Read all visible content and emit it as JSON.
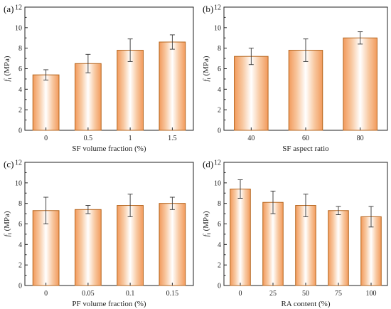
{
  "figure": {
    "panels": [
      "a",
      "b",
      "c",
      "d"
    ]
  },
  "style": {
    "bar_edge": "#b5651d",
    "bar_center": "#ffffff",
    "bar_side": "#f4a46a",
    "error_bar": "#333333",
    "axis": "#222222"
  },
  "chart_data": [
    {
      "panel": "(a)",
      "type": "bar",
      "categories": [
        "0",
        "0.5",
        "1",
        "1.5"
      ],
      "values": [
        5.4,
        6.5,
        7.8,
        8.6
      ],
      "errors": [
        0.5,
        0.9,
        1.1,
        0.7
      ],
      "xlabel": "SF volume fraction (%)",
      "ylabel": "f_t (MPa)",
      "ylim": [
        0,
        12
      ],
      "yticks": [
        "0",
        "2",
        "4",
        "6",
        "8",
        "10",
        "12"
      ],
      "grid": false
    },
    {
      "panel": "(b)",
      "type": "bar",
      "categories": [
        "40",
        "60",
        "80"
      ],
      "values": [
        7.2,
        7.8,
        9.0
      ],
      "errors": [
        0.8,
        1.1,
        0.6
      ],
      "xlabel": "SF aspect ratio",
      "ylabel": "f_t (MPa)",
      "ylim": [
        0,
        12
      ],
      "yticks": [
        "0",
        "2",
        "4",
        "6",
        "8",
        "10",
        "12"
      ],
      "grid": false
    },
    {
      "panel": "(c)",
      "type": "bar",
      "categories": [
        "0",
        "0.05",
        "0.1",
        "0.15"
      ],
      "values": [
        7.3,
        7.4,
        7.8,
        8.0
      ],
      "errors": [
        1.3,
        0.4,
        1.1,
        0.6
      ],
      "xlabel": "PF volume fraction (%)",
      "ylabel": "f_t (MPa)",
      "ylim": [
        0,
        12
      ],
      "yticks": [
        "0",
        "2",
        "4",
        "6",
        "8",
        "10",
        "12"
      ],
      "grid": false
    },
    {
      "panel": "(d)",
      "type": "bar",
      "categories": [
        "0",
        "25",
        "50",
        "75",
        "100"
      ],
      "values": [
        9.4,
        8.1,
        7.8,
        7.3,
        6.7
      ],
      "errors": [
        0.9,
        1.1,
        1.1,
        0.4,
        1.0
      ],
      "xlabel": "RA content (%)",
      "ylabel": "f_t (MPa)",
      "ylim": [
        0,
        12
      ],
      "yticks": [
        "0",
        "2",
        "4",
        "6",
        "8",
        "10",
        "12"
      ],
      "grid": false
    }
  ]
}
